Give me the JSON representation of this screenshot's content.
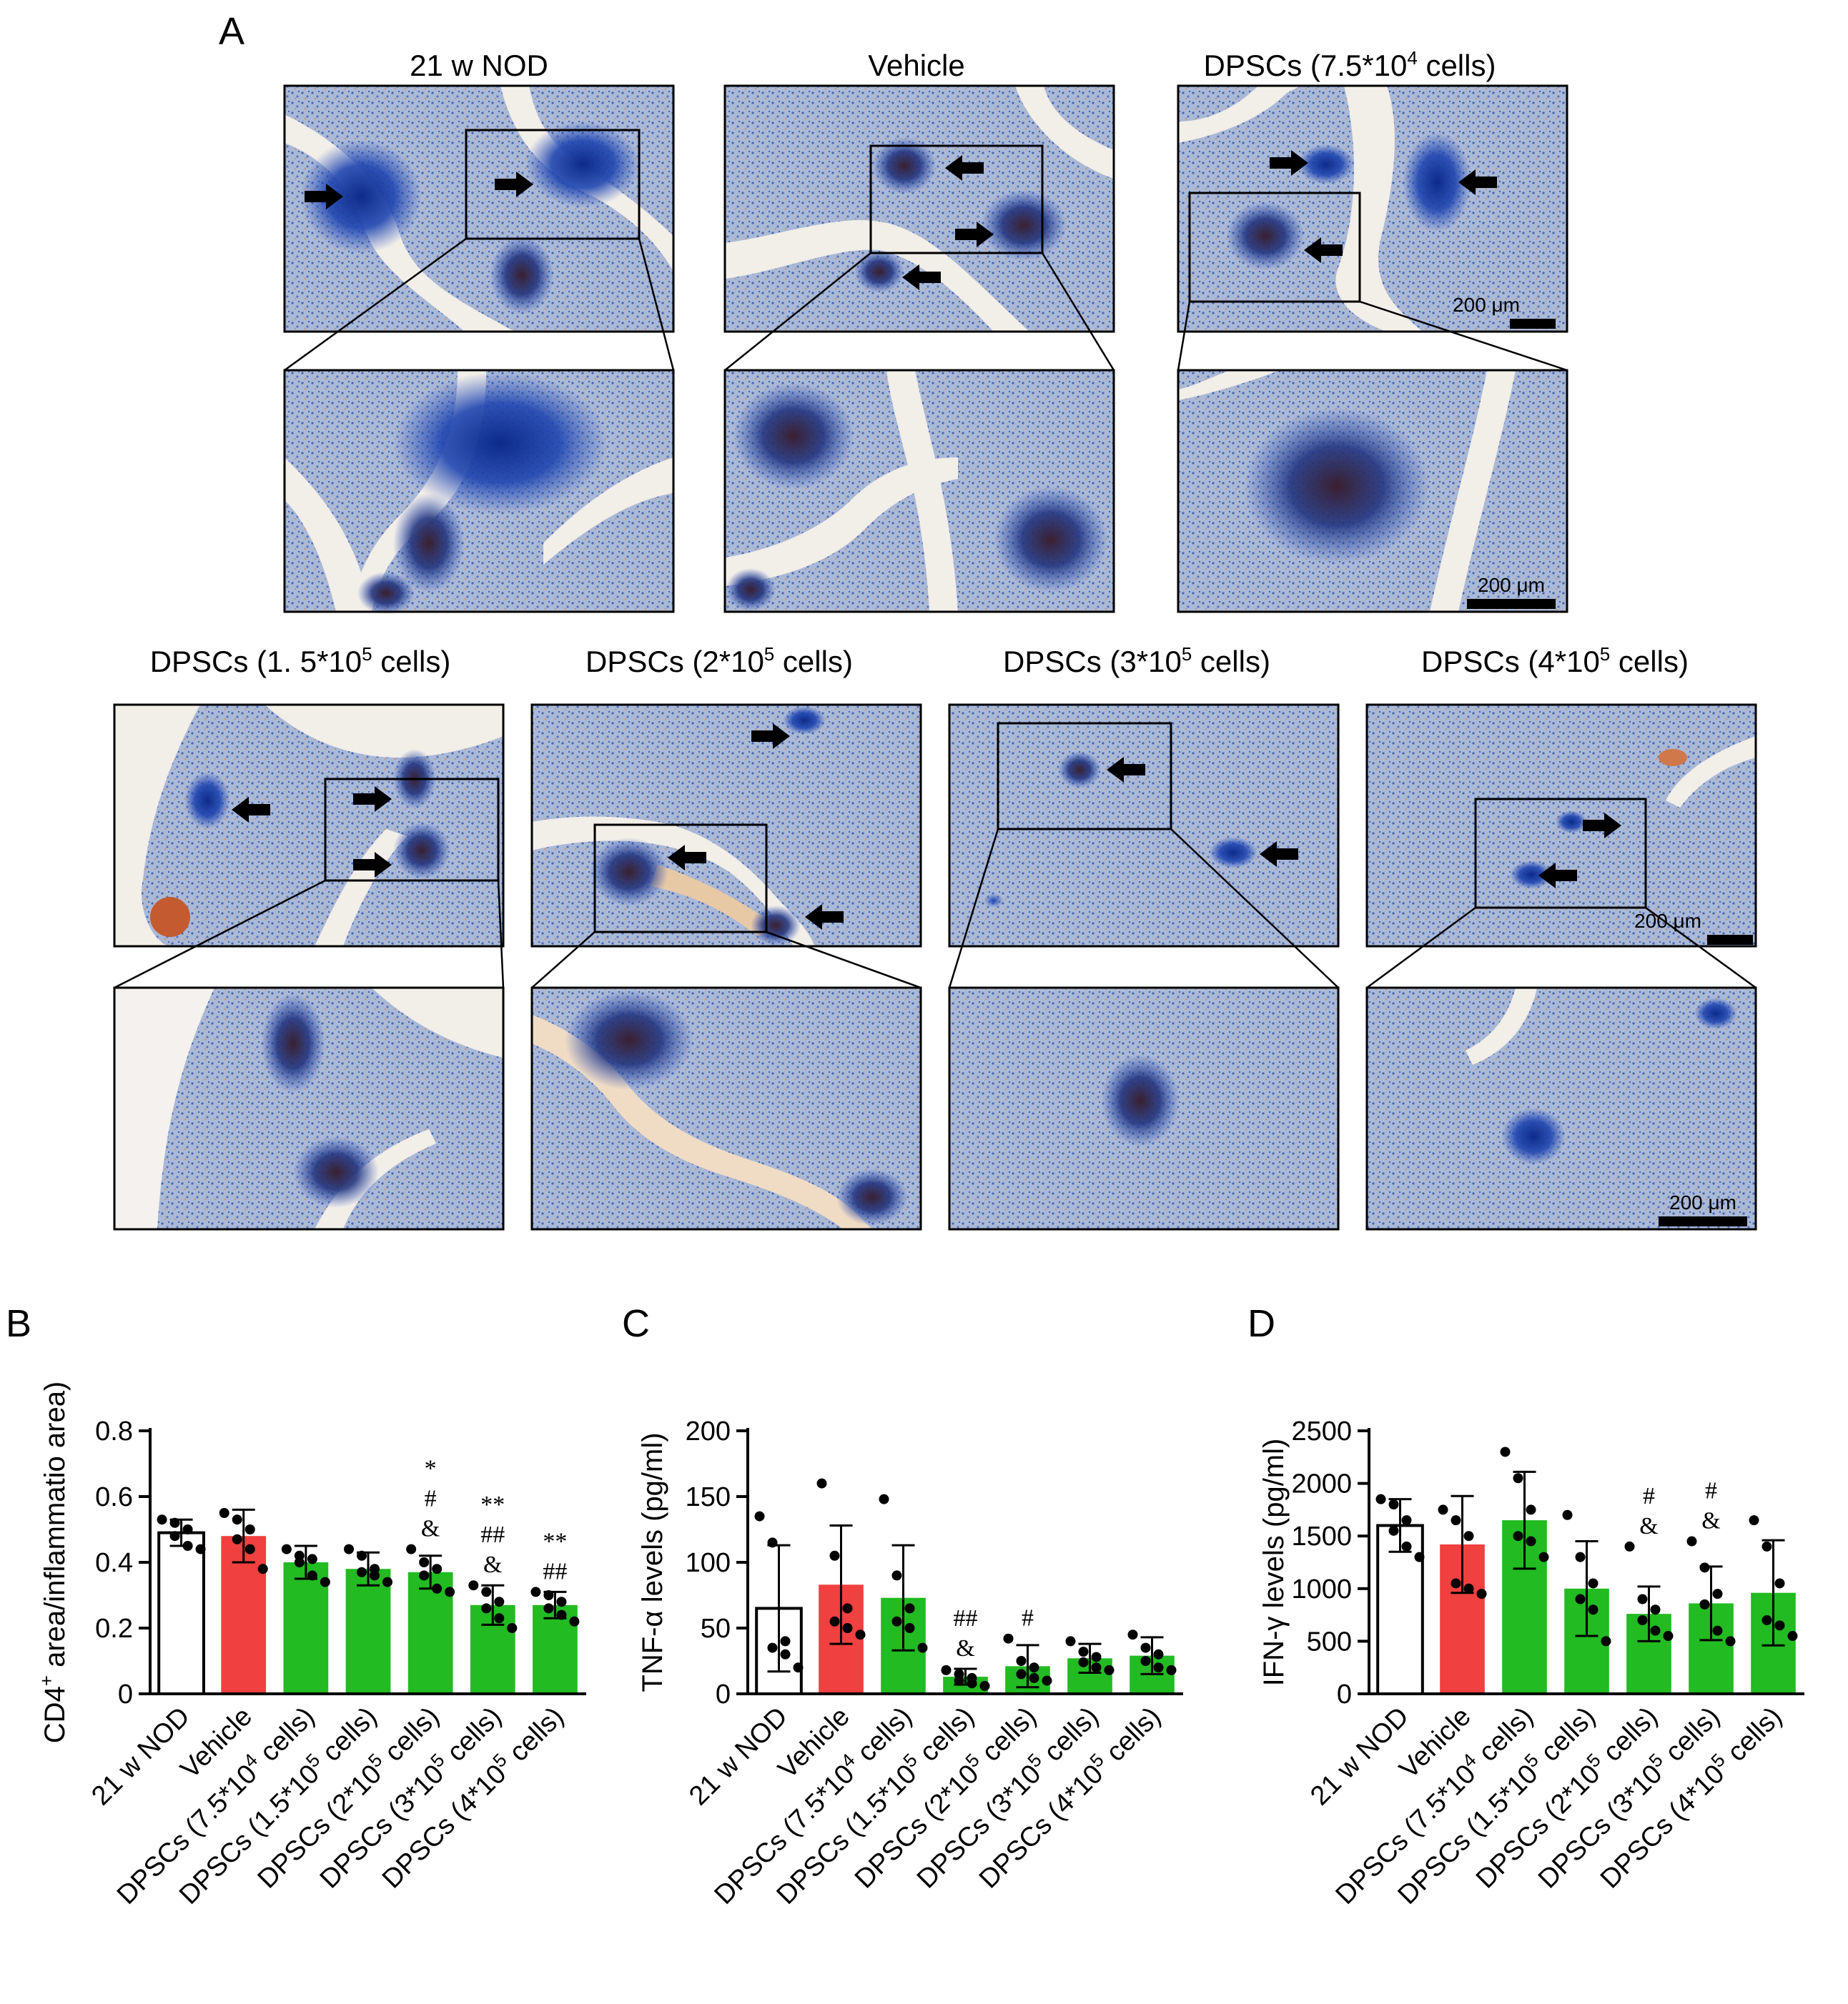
{
  "panel_letters": {
    "A": "A",
    "B": "B",
    "C": "C",
    "D": "D"
  },
  "scale_bar_label": "200 μm",
  "micrographs": [
    {
      "title": "21 w NOD",
      "title_sup": "",
      "title_end": ""
    },
    {
      "title": "Vehicle",
      "title_sup": "",
      "title_end": ""
    },
    {
      "title": "DPSCs (7.5*10",
      "title_sup": "4",
      "title_end": " cells)"
    },
    {
      "title": "DPSCs (1. 5*10",
      "title_sup": "5",
      "title_end": " cells)"
    },
    {
      "title": "DPSCs (2*10",
      "title_sup": "5",
      "title_end": " cells)"
    },
    {
      "title": "DPSCs (3*10",
      "title_sup": "5",
      "title_end": " cells)"
    },
    {
      "title": "DPSCs (4*10",
      "title_sup": "5",
      "title_end": " cells)"
    }
  ],
  "colors": {
    "vehicle": "#f0403f",
    "dpsc": "#22bb22",
    "nod": "#ffffff",
    "stain_blue": "#2a4fb5",
    "stain_brown": "#b0532a"
  },
  "chart_data": [
    {
      "type": "bar",
      "panel": "B",
      "ylabel_pre": "CD4",
      "ylabel_sup": "+",
      "ylabel_post": " area/inflammatio area)",
      "ylim": [
        0,
        0.8
      ],
      "yticks": [
        "0",
        "0.2",
        "0.4",
        "0.6",
        "0.8"
      ],
      "categories": [
        {
          "pre": "21 w NOD",
          "sup": "",
          "post": ""
        },
        {
          "pre": "Vehicle",
          "sup": "",
          "post": ""
        },
        {
          "pre": "DPSCs (7.5*10",
          "sup": "4",
          "post": " cells)"
        },
        {
          "pre": "DPSCs (1.5*10",
          "sup": "5",
          "post": " cells)"
        },
        {
          "pre": "DPSCs (2*10",
          "sup": "5",
          "post": " cells)"
        },
        {
          "pre": "DPSCs (3*10",
          "sup": "5",
          "post": " cells)"
        },
        {
          "pre": "DPSCs (4*10",
          "sup": "5",
          "post": " cells)"
        }
      ],
      "values": [
        0.49,
        0.48,
        0.4,
        0.38,
        0.37,
        0.27,
        0.27
      ],
      "errors": [
        0.04,
        0.08,
        0.05,
        0.05,
        0.05,
        0.06,
        0.04
      ],
      "points": [
        [
          0.53,
          0.52,
          0.5,
          0.48,
          0.45,
          0.44
        ],
        [
          0.55,
          0.53,
          0.5,
          0.47,
          0.44,
          0.38
        ],
        [
          0.44,
          0.42,
          0.41,
          0.4,
          0.36,
          0.34
        ],
        [
          0.44,
          0.42,
          0.38,
          0.37,
          0.36,
          0.34
        ],
        [
          0.44,
          0.4,
          0.38,
          0.36,
          0.32,
          0.31
        ],
        [
          0.33,
          0.31,
          0.28,
          0.26,
          0.23,
          0.2
        ],
        [
          0.31,
          0.3,
          0.28,
          0.26,
          0.24,
          0.22
        ]
      ],
      "annotations": [
        [],
        [],
        [],
        [],
        [
          "*",
          "#",
          "&"
        ],
        [
          "**",
          "##",
          "&"
        ],
        [
          "**",
          "##"
        ]
      ]
    },
    {
      "type": "bar",
      "panel": "C",
      "ylabel_pre": "TNF-α levels (pg/ml)",
      "ylabel_sup": "",
      "ylabel_post": "",
      "ylim": [
        0,
        200
      ],
      "yticks": [
        "0",
        "50",
        "100",
        "150",
        "200"
      ],
      "categories": [
        {
          "pre": "21 w NOD",
          "sup": "",
          "post": ""
        },
        {
          "pre": "Vehicle",
          "sup": "",
          "post": ""
        },
        {
          "pre": "DPSCs (7.5*10",
          "sup": "4",
          "post": " cells)"
        },
        {
          "pre": "DPSCs (1.5*10",
          "sup": "5",
          "post": " cells)"
        },
        {
          "pre": "DPSCs (2*10",
          "sup": "5",
          "post": " cells)"
        },
        {
          "pre": "DPSCs (3*10",
          "sup": "5",
          "post": " cells)"
        },
        {
          "pre": "DPSCs (4*10",
          "sup": "5",
          "post": " cells)"
        }
      ],
      "values": [
        65,
        83,
        73,
        13,
        21,
        27,
        29
      ],
      "errors": [
        48,
        45,
        40,
        6,
        16,
        11,
        14
      ],
      "points": [
        [
          135,
          115,
          40,
          35,
          30,
          20
        ],
        [
          160,
          105,
          65,
          55,
          50,
          45
        ],
        [
          148,
          90,
          65,
          55,
          50,
          35
        ],
        [
          18,
          15,
          12,
          10,
          8,
          6
        ],
        [
          42,
          25,
          20,
          15,
          12,
          10
        ],
        [
          40,
          32,
          28,
          24,
          20,
          18
        ],
        [
          45,
          35,
          30,
          25,
          20,
          18
        ]
      ],
      "annotations": [
        [],
        [],
        [],
        [
          "##",
          "&"
        ],
        [
          "#"
        ],
        [],
        []
      ]
    },
    {
      "type": "bar",
      "panel": "D",
      "ylabel_pre": "IFN-γ levels (pg/ml)",
      "ylabel_sup": "",
      "ylabel_post": "",
      "ylim": [
        0,
        2500
      ],
      "yticks": [
        "0",
        "500",
        "1000",
        "1500",
        "2000",
        "2500"
      ],
      "categories": [
        {
          "pre": "21 w NOD",
          "sup": "",
          "post": ""
        },
        {
          "pre": "Vehicle",
          "sup": "",
          "post": ""
        },
        {
          "pre": "DPSCs (7.5*10",
          "sup": "4",
          "post": " cells)"
        },
        {
          "pre": "DPSCs (1.5*10",
          "sup": "5",
          "post": " cells)"
        },
        {
          "pre": "DPSCs (2*10",
          "sup": "5",
          "post": " cells)"
        },
        {
          "pre": "DPSCs (3*10",
          "sup": "5",
          "post": " cells)"
        },
        {
          "pre": "DPSCs (4*10",
          "sup": "5",
          "post": " cells)"
        }
      ],
      "values": [
        1600,
        1420,
        1650,
        1000,
        760,
        860,
        960
      ],
      "errors": [
        250,
        460,
        460,
        450,
        260,
        350,
        500
      ],
      "points": [
        [
          1850,
          1800,
          1650,
          1550,
          1400,
          1300
        ],
        [
          1750,
          1650,
          1500,
          1050,
          1000,
          950
        ],
        [
          2300,
          2050,
          1750,
          1500,
          1450,
          1300
        ],
        [
          1700,
          1300,
          1050,
          900,
          800,
          500
        ],
        [
          1400,
          900,
          800,
          700,
          600,
          550
        ],
        [
          1450,
          1200,
          950,
          850,
          600,
          500
        ],
        [
          1650,
          1400,
          1050,
          700,
          650,
          550
        ]
      ],
      "annotations": [
        [],
        [],
        [],
        [],
        [
          "#",
          "&"
        ],
        [
          "#",
          "&"
        ],
        []
      ]
    }
  ]
}
